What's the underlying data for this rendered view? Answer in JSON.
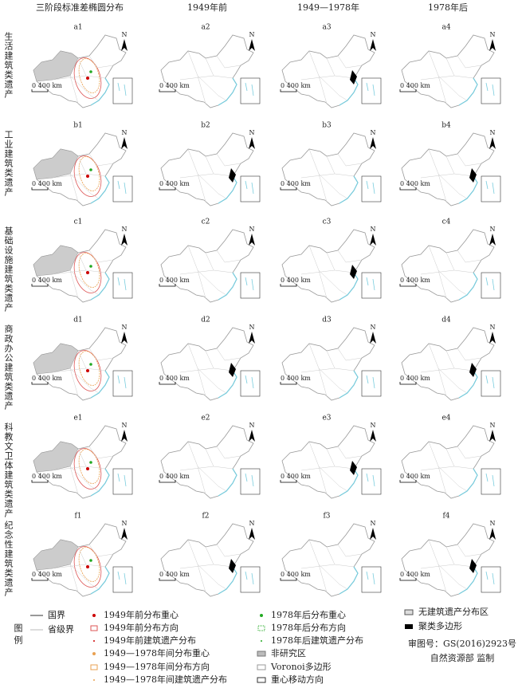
{
  "columns": [
    "三阶段标准差椭圆分布",
    "1949年前",
    "1949—1978年",
    "1978年后"
  ],
  "rows": [
    {
      "label": "生活建筑类遗产",
      "panels": [
        "a1",
        "a2",
        "a3",
        "a4"
      ]
    },
    {
      "label": "工业建筑类遗产",
      "panels": [
        "b1",
        "b2",
        "b3",
        "b4"
      ]
    },
    {
      "label": "基础设施建筑类遗产",
      "panels": [
        "c1",
        "c2",
        "c3",
        "c4"
      ]
    },
    {
      "label": "商政办公建筑类遗产",
      "panels": [
        "d1",
        "d2",
        "d3",
        "d4"
      ]
    },
    {
      "label": "科教文卫体建筑类遗产",
      "panels": [
        "e1",
        "e2",
        "e3",
        "e4"
      ]
    },
    {
      "label": "纪念性建筑类遗产",
      "panels": [
        "f1",
        "f2",
        "f3",
        "f4"
      ]
    }
  ],
  "scale_label": "0 400 km",
  "north_label": "N",
  "legend": {
    "title": "图例",
    "items": [
      "国界",
      "省级界",
      "1949年前分布重心",
      "1949年前分布方向",
      "1949年前建筑遗产分布",
      "1949—1978年间分布重心",
      "1949—1978年间分布方向",
      "1949—1978年间建筑遗产分布",
      "1978年后分布重心",
      "1978年后分布方向",
      "1978年后建筑遗产分布",
      "非研究区",
      "Voronoi多边形",
      "重心移动方向",
      "无建筑遗产分布区",
      "聚类多边形"
    ]
  },
  "notes": [
    "审图号：GS(2016)2923号",
    "自然资源部 监制"
  ]
}
